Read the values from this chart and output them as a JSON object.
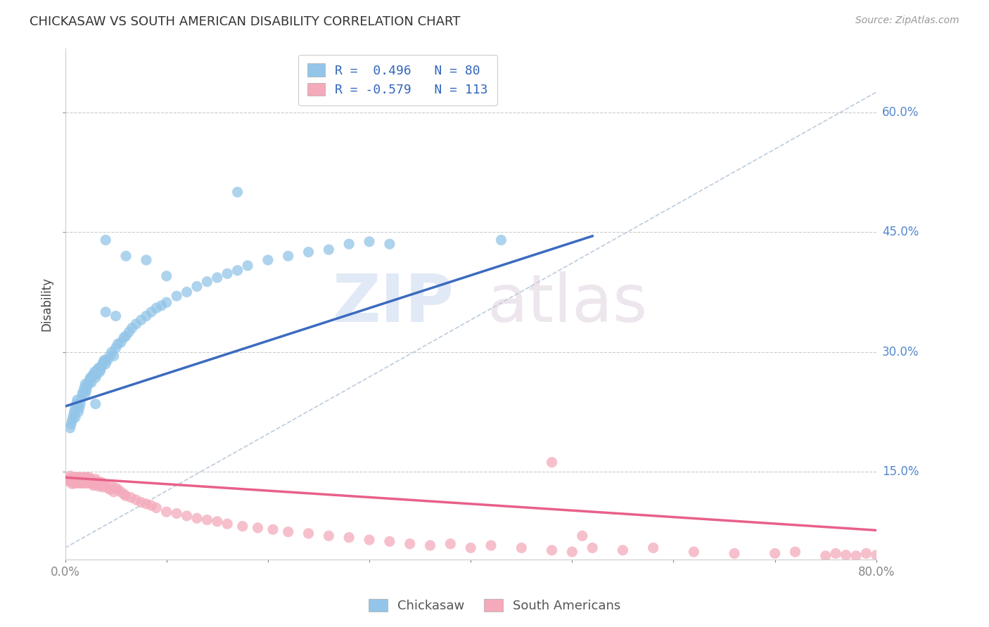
{
  "title": "CHICKASAW VS SOUTH AMERICAN DISABILITY CORRELATION CHART",
  "source": "Source: ZipAtlas.com",
  "ylabel": "Disability",
  "ytick_labels": [
    "15.0%",
    "30.0%",
    "45.0%",
    "60.0%"
  ],
  "ytick_values": [
    0.15,
    0.3,
    0.45,
    0.6
  ],
  "xlim": [
    0.0,
    0.8
  ],
  "ylim": [
    0.04,
    0.68
  ],
  "watermark_zip": "ZIP",
  "watermark_atlas": "atlas",
  "legend_blue_r": "R =  0.496",
  "legend_blue_n": "N = 80",
  "legend_pink_r": "R = -0.579",
  "legend_pink_n": "N = 113",
  "legend_blue_label": "Chickasaw",
  "legend_pink_label": "South Americans",
  "blue_color": "#92C5E8",
  "pink_color": "#F4AABB",
  "blue_line_color": "#3B6BBF",
  "pink_line_color": "#E8608A",
  "dash_line_color": "#BBCCDD",
  "blue_line_x": [
    0.0,
    0.52
  ],
  "blue_line_y": [
    0.232,
    0.445
  ],
  "pink_line_x": [
    0.0,
    0.8
  ],
  "pink_line_y": [
    0.143,
    0.077
  ],
  "dash_line_x": [
    0.0,
    0.8
  ],
  "dash_line_y": [
    0.055,
    0.625
  ],
  "blue_x": [
    0.005,
    0.006,
    0.007,
    0.008,
    0.009,
    0.01,
    0.01,
    0.011,
    0.012,
    0.013,
    0.014,
    0.015,
    0.016,
    0.017,
    0.018,
    0.019,
    0.02,
    0.021,
    0.022,
    0.023,
    0.024,
    0.025,
    0.026,
    0.027,
    0.028,
    0.029,
    0.03,
    0.031,
    0.032,
    0.033,
    0.034,
    0.035,
    0.036,
    0.037,
    0.038,
    0.039,
    0.04,
    0.042,
    0.044,
    0.046,
    0.048,
    0.05,
    0.052,
    0.055,
    0.058,
    0.06,
    0.063,
    0.066,
    0.07,
    0.075,
    0.08,
    0.085,
    0.09,
    0.095,
    0.1,
    0.11,
    0.12,
    0.13,
    0.14,
    0.15,
    0.16,
    0.17,
    0.18,
    0.2,
    0.22,
    0.24,
    0.26,
    0.28,
    0.3,
    0.17,
    0.04,
    0.06,
    0.08,
    0.1,
    0.04,
    0.05,
    0.02,
    0.03,
    0.43,
    0.32
  ],
  "blue_y": [
    0.205,
    0.21,
    0.215,
    0.22,
    0.225,
    0.218,
    0.23,
    0.235,
    0.24,
    0.225,
    0.23,
    0.235,
    0.242,
    0.248,
    0.25,
    0.255,
    0.248,
    0.252,
    0.258,
    0.26,
    0.265,
    0.268,
    0.262,
    0.27,
    0.272,
    0.275,
    0.268,
    0.272,
    0.278,
    0.28,
    0.275,
    0.278,
    0.282,
    0.285,
    0.288,
    0.29,
    0.285,
    0.29,
    0.295,
    0.3,
    0.295,
    0.305,
    0.31,
    0.312,
    0.318,
    0.32,
    0.325,
    0.33,
    0.335,
    0.34,
    0.345,
    0.35,
    0.355,
    0.358,
    0.362,
    0.37,
    0.375,
    0.382,
    0.388,
    0.393,
    0.398,
    0.402,
    0.408,
    0.415,
    0.42,
    0.425,
    0.428,
    0.435,
    0.438,
    0.5,
    0.44,
    0.42,
    0.415,
    0.395,
    0.35,
    0.345,
    0.26,
    0.235,
    0.44,
    0.435
  ],
  "pink_x": [
    0.003,
    0.004,
    0.005,
    0.005,
    0.006,
    0.006,
    0.007,
    0.007,
    0.008,
    0.008,
    0.009,
    0.009,
    0.01,
    0.01,
    0.011,
    0.011,
    0.012,
    0.012,
    0.013,
    0.013,
    0.014,
    0.014,
    0.015,
    0.015,
    0.016,
    0.016,
    0.017,
    0.017,
    0.018,
    0.018,
    0.019,
    0.019,
    0.02,
    0.02,
    0.021,
    0.021,
    0.022,
    0.022,
    0.023,
    0.023,
    0.024,
    0.024,
    0.025,
    0.025,
    0.026,
    0.027,
    0.028,
    0.029,
    0.03,
    0.03,
    0.031,
    0.032,
    0.033,
    0.034,
    0.035,
    0.036,
    0.037,
    0.038,
    0.04,
    0.042,
    0.044,
    0.046,
    0.048,
    0.05,
    0.052,
    0.055,
    0.058,
    0.06,
    0.065,
    0.07,
    0.075,
    0.08,
    0.085,
    0.09,
    0.1,
    0.11,
    0.12,
    0.13,
    0.14,
    0.15,
    0.16,
    0.175,
    0.19,
    0.205,
    0.22,
    0.24,
    0.26,
    0.28,
    0.3,
    0.32,
    0.34,
    0.36,
    0.38,
    0.4,
    0.42,
    0.45,
    0.48,
    0.5,
    0.52,
    0.55,
    0.58,
    0.62,
    0.66,
    0.7,
    0.72,
    0.75,
    0.76,
    0.77,
    0.78,
    0.79,
    0.8,
    0.48,
    0.51
  ],
  "pink_y": [
    0.14,
    0.138,
    0.142,
    0.145,
    0.138,
    0.142,
    0.135,
    0.14,
    0.138,
    0.143,
    0.136,
    0.141,
    0.138,
    0.143,
    0.136,
    0.141,
    0.138,
    0.143,
    0.136,
    0.141,
    0.138,
    0.143,
    0.136,
    0.141,
    0.138,
    0.143,
    0.136,
    0.141,
    0.138,
    0.143,
    0.136,
    0.141,
    0.138,
    0.143,
    0.136,
    0.141,
    0.138,
    0.143,
    0.136,
    0.141,
    0.138,
    0.143,
    0.136,
    0.141,
    0.138,
    0.135,
    0.133,
    0.138,
    0.136,
    0.141,
    0.134,
    0.138,
    0.132,
    0.136,
    0.133,
    0.137,
    0.131,
    0.135,
    0.133,
    0.13,
    0.128,
    0.132,
    0.125,
    0.13,
    0.128,
    0.125,
    0.122,
    0.12,
    0.118,
    0.115,
    0.112,
    0.11,
    0.108,
    0.105,
    0.1,
    0.098,
    0.095,
    0.092,
    0.09,
    0.088,
    0.085,
    0.082,
    0.08,
    0.078,
    0.075,
    0.073,
    0.07,
    0.068,
    0.065,
    0.063,
    0.06,
    0.058,
    0.06,
    0.055,
    0.058,
    0.055,
    0.052,
    0.05,
    0.055,
    0.052,
    0.055,
    0.05,
    0.048,
    0.048,
    0.05,
    0.045,
    0.048,
    0.046,
    0.045,
    0.048,
    0.046,
    0.162,
    0.07
  ]
}
